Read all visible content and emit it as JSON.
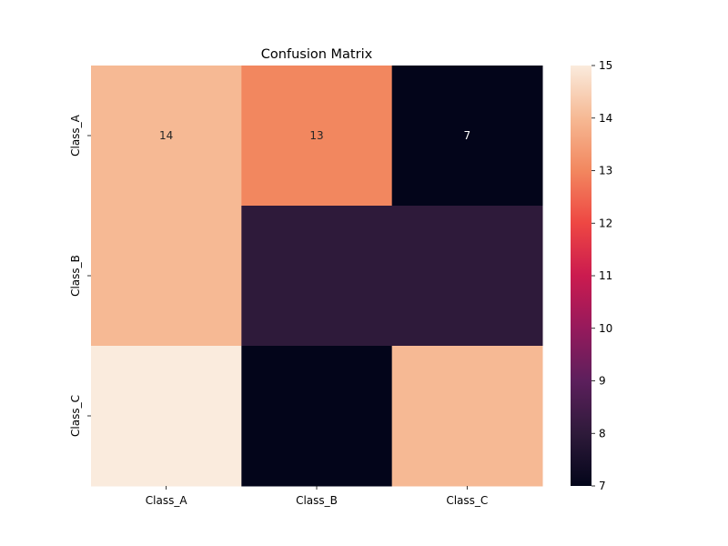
{
  "chart_data": {
    "type": "heatmap",
    "title": "Confusion Matrix",
    "xlabel": "",
    "ylabel": "",
    "x_categories": [
      "Class_A",
      "Class_B",
      "Class_C"
    ],
    "y_categories": [
      "Class_A",
      "Class_B",
      "Class_C"
    ],
    "values": [
      [
        14,
        13,
        7
      ],
      [
        14,
        8,
        8
      ],
      [
        15,
        7,
        14
      ]
    ],
    "annotations": [
      [
        "14",
        "13",
        "7"
      ],
      [
        null,
        null,
        null
      ],
      [
        null,
        null,
        null
      ]
    ],
    "colormap": "rocket",
    "colorbar": {
      "range": [
        7,
        15
      ],
      "ticks": [
        7,
        8,
        9,
        10,
        11,
        12,
        13,
        14,
        15
      ]
    },
    "grid": false
  }
}
